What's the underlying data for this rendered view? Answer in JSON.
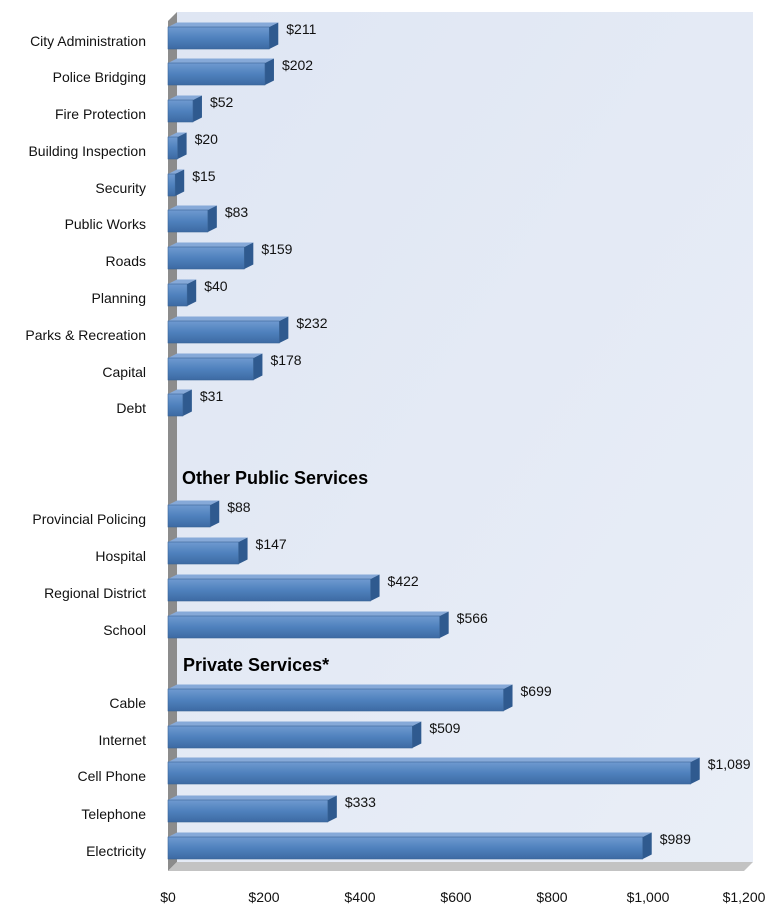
{
  "chart_data": {
    "type": "bar",
    "orientation": "horizontal",
    "style": "3d",
    "bar_color": "#4f81bd",
    "section_labels": [
      "Other Public Services",
      "Private Services*"
    ],
    "categories": [
      "City Administration",
      "Police Bridging",
      "Fire Protection",
      "Building Inspection",
      "Security",
      "Public Works",
      "Roads",
      "Planning",
      "Parks & Recreation",
      "Capital",
      "Debt",
      "Provincial Policing",
      "Hospital",
      "Regional District",
      "School",
      "Cable",
      "Internet",
      "Cell Phone",
      "Telephone",
      "Electricity"
    ],
    "values": [
      211,
      202,
      52,
      20,
      15,
      83,
      159,
      40,
      232,
      178,
      31,
      88,
      147,
      422,
      566,
      699,
      509,
      1089,
      333,
      989
    ],
    "value_labels": [
      "$211",
      "$202",
      "$52",
      "$20",
      "$15",
      "$83",
      "$159",
      "$40",
      "$232",
      "$178",
      "$31",
      "$88",
      "$147",
      "$422",
      "$566",
      "$699",
      "$509",
      "$1,089",
      "$333",
      "$989"
    ],
    "xlim": [
      0,
      1200
    ],
    "xticks": [
      0,
      200,
      400,
      600,
      800,
      1000,
      1200
    ],
    "xtick_labels": [
      "$0",
      "$200",
      "$400",
      "$600",
      "$800",
      "$1,000",
      "$1,200"
    ],
    "title": "",
    "xlabel": "",
    "ylabel": "",
    "grid": false,
    "legend": "none"
  }
}
